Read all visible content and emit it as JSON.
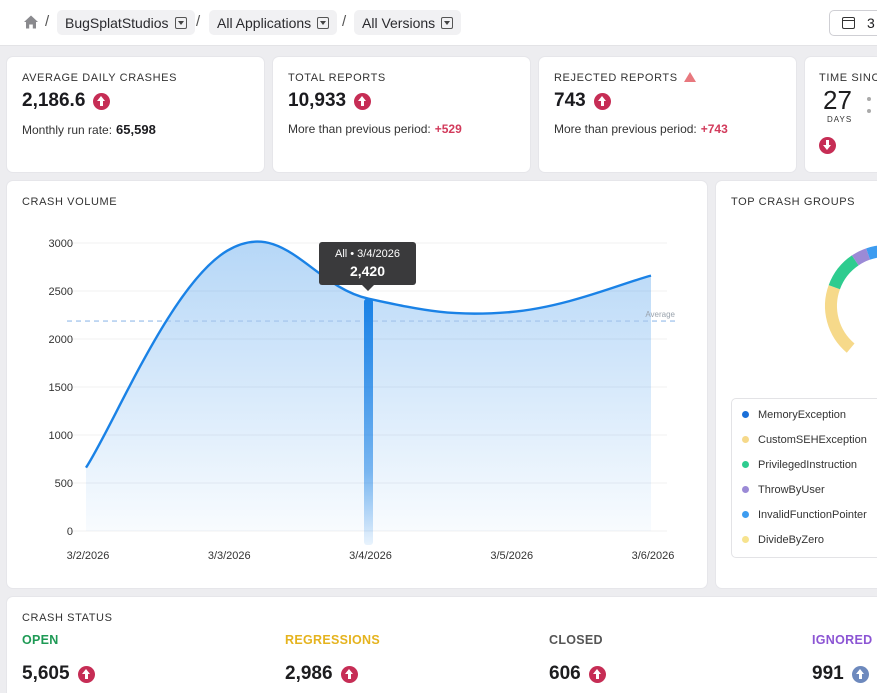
{
  "breadcrumb": {
    "company": "BugSplatStudios",
    "applications": "All Applications",
    "versions": "All Versions",
    "date_button": "3"
  },
  "kpis": {
    "avg_daily": {
      "label": "AVERAGE DAILY CRASHES",
      "value": "2,186.6",
      "sub_label": "Monthly run rate:",
      "sub_value": "65,598"
    },
    "total_reports": {
      "label": "TOTAL REPORTS",
      "value": "10,933",
      "sub_label": "More than previous period:",
      "sub_value": "+529"
    },
    "rejected_reports": {
      "label": "REJECTED REPORTS",
      "value": "743",
      "sub_label": "More than previous period:",
      "sub_value": "+743"
    },
    "time_since": {
      "label": "TIME SINCE",
      "value": "27",
      "unit": "DAYS"
    }
  },
  "crash_volume": {
    "title": "CRASH VOLUME",
    "tooltip": {
      "header": "All • 3/4/2026",
      "value": "2,420"
    },
    "average_label": "Average"
  },
  "chart_data": {
    "type": "area",
    "x": [
      "3/2/2026",
      "3/3/2026",
      "3/4/2026",
      "3/5/2026",
      "3/6/2026"
    ],
    "series": [
      {
        "values": [
          660,
          2920,
          2420,
          2280,
          2660
        ]
      }
    ],
    "average": 2186.6,
    "ylim": [
      0,
      3000
    ],
    "yticks": [
      0,
      500,
      1000,
      1500,
      2000,
      2500,
      3000
    ],
    "highlight_index": 2,
    "color": "#1a82e6"
  },
  "top_crash_groups": {
    "title": "TOP CRASH GROUPS",
    "items": [
      {
        "label": "MemoryException",
        "color": "#1a6fd8"
      },
      {
        "label": "CustomSEHException",
        "color": "#f6d98a"
      },
      {
        "label": "PrivilegedInstruction",
        "color": "#2ecc8f"
      },
      {
        "label": "ThrowByUser",
        "color": "#9b8ad6"
      },
      {
        "label": "InvalidFunctionPointer",
        "color": "#3d9cf0"
      },
      {
        "label": "DivideByZero",
        "color": "#f7e38e"
      }
    ]
  },
  "crash_status": {
    "title": "CRASH STATUS",
    "open": {
      "label": "OPEN",
      "value": "5,605",
      "color": "#1e9a55"
    },
    "regressions": {
      "label": "REGRESSIONS",
      "value": "2,986",
      "color": "#e5b31e"
    },
    "closed": {
      "label": "CLOSED",
      "value": "606",
      "color": "#555555"
    },
    "ignored": {
      "label": "IGNORED",
      "value": "991",
      "color": "#8c55d4"
    }
  }
}
